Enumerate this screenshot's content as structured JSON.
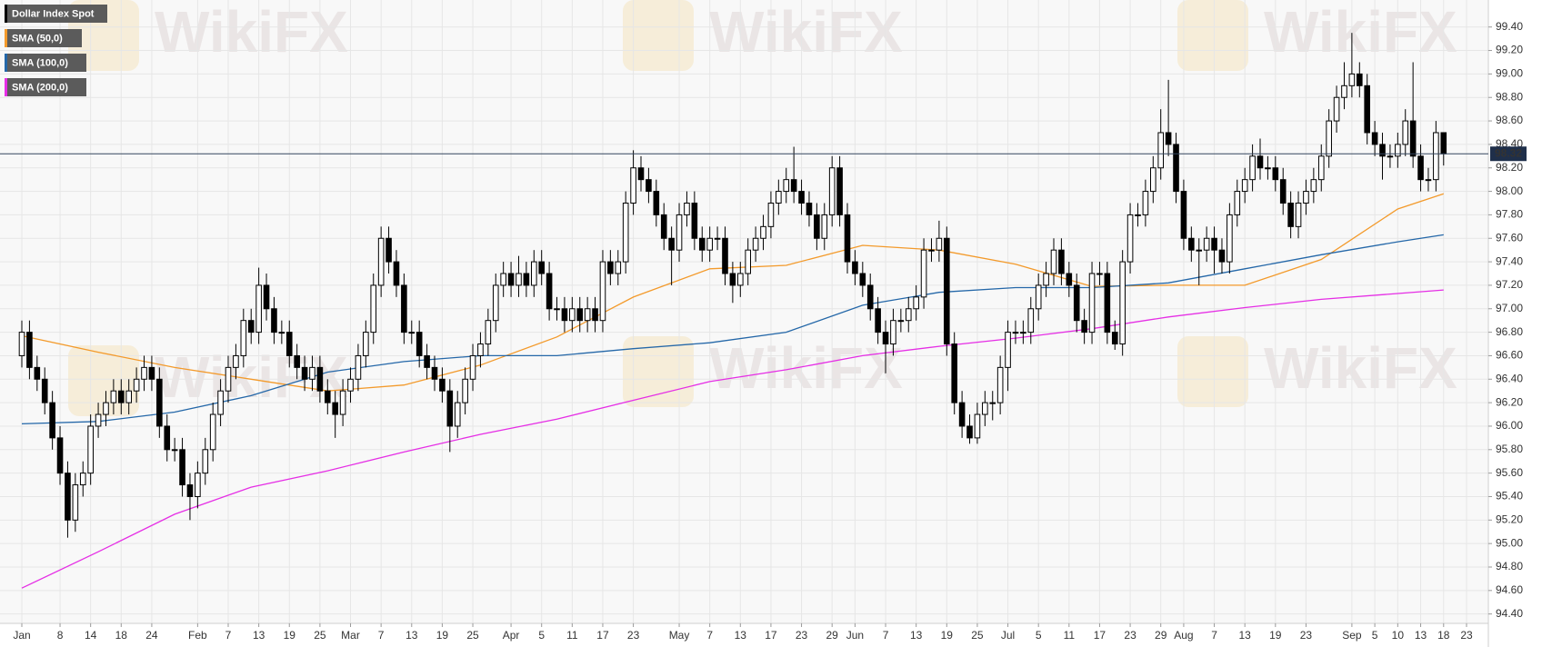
{
  "chart_data": {
    "type": "candlestick",
    "watermark": "WikiFX",
    "last_price": 98.32,
    "grid": true,
    "categories": [
      "Jan",
      null,
      null,
      null,
      null,
      "8",
      null,
      null,
      null,
      "14",
      null,
      null,
      null,
      "18",
      null,
      null,
      null,
      "24",
      null,
      null,
      null,
      null,
      null,
      "Feb",
      null,
      null,
      null,
      "7",
      null,
      null,
      null,
      "13",
      null,
      null,
      null,
      "19",
      null,
      null,
      null,
      "25",
      null,
      null,
      null,
      "Mar",
      null,
      null,
      null,
      "7",
      null,
      null,
      null,
      "13",
      null,
      null,
      null,
      "19",
      null,
      null,
      null,
      "25",
      null,
      null,
      null,
      null,
      "Apr",
      null,
      null,
      null,
      "5",
      null,
      null,
      null,
      "11",
      null,
      null,
      null,
      "17",
      null,
      null,
      null,
      "23",
      null,
      null,
      null,
      null,
      null,
      "May",
      null,
      null,
      null,
      "7",
      null,
      null,
      null,
      "13",
      null,
      null,
      null,
      "17",
      null,
      null,
      null,
      "23",
      null,
      null,
      null,
      "29",
      null,
      null,
      "Jun",
      null,
      null,
      null,
      "7",
      null,
      null,
      null,
      "13",
      null,
      null,
      null,
      "19",
      null,
      null,
      null,
      "25",
      null,
      null,
      null,
      "Jul",
      null,
      null,
      null,
      "5",
      null,
      null,
      null,
      "11",
      null,
      null,
      null,
      "17",
      null,
      null,
      null,
      "23",
      null,
      null,
      null,
      "29",
      null,
      null,
      "Aug",
      null,
      null,
      null,
      "7",
      null,
      null,
      null,
      "13",
      null,
      null,
      null,
      "19",
      null,
      null,
      null,
      "23",
      null,
      null,
      null,
      null,
      null,
      "Sep",
      null,
      null,
      "5",
      null,
      null,
      "10",
      null,
      null,
      "13",
      null,
      null,
      "18",
      null,
      null,
      "23"
    ],
    "ylim": [
      94.32,
      99.63
    ],
    "yticks": [
      {
        "value": 94.4,
        "label": "94.40"
      },
      {
        "value": 94.6,
        "label": "94.60"
      },
      {
        "value": 94.8,
        "label": "94.80"
      },
      {
        "value": 95.0,
        "label": "95.00"
      },
      {
        "value": 95.2,
        "label": "95.20"
      },
      {
        "value": 95.4,
        "label": "95.40"
      },
      {
        "value": 95.6,
        "label": "95.60"
      },
      {
        "value": 95.8,
        "label": "95.80"
      },
      {
        "value": 96.0,
        "label": "96.00"
      },
      {
        "value": 96.2,
        "label": "96.20"
      },
      {
        "value": 96.4,
        "label": "96.40"
      },
      {
        "value": 96.6,
        "label": "96.60"
      },
      {
        "value": 96.8,
        "label": "96.80"
      },
      {
        "value": 97.0,
        "label": "97.00"
      },
      {
        "value": 97.2,
        "label": "97.20"
      },
      {
        "value": 97.4,
        "label": "97.40"
      },
      {
        "value": 97.6,
        "label": "97.60"
      },
      {
        "value": 97.8,
        "label": "97.80"
      },
      {
        "value": 98.0,
        "label": "98.00"
      },
      {
        "value": 98.2,
        "label": "98.20"
      },
      {
        "value": 98.4,
        "label": "98.40"
      },
      {
        "value": 98.6,
        "label": "98.60"
      },
      {
        "value": 98.8,
        "label": "98.80"
      },
      {
        "value": 99.0,
        "label": "99.00"
      },
      {
        "value": 99.2,
        "label": "99.20"
      },
      {
        "value": 99.4,
        "label": "99.40"
      }
    ],
    "series": [
      {
        "name": "Dollar Index Spot",
        "color": "#000000",
        "open": [
          96.6,
          96.8,
          96.5,
          96.4,
          96.2,
          95.9,
          95.6,
          95.2,
          95.5,
          95.6,
          96.0,
          96.1,
          96.2,
          96.3,
          96.2,
          96.3,
          96.4,
          96.5,
          96.4,
          96.0,
          95.8,
          95.8,
          95.5,
          95.4,
          95.6,
          95.8,
          96.1,
          96.3,
          96.5,
          96.6,
          96.9,
          96.8,
          97.2,
          97.0,
          96.8,
          96.8,
          96.6,
          96.5,
          96.4,
          96.5,
          96.3,
          96.2,
          96.1,
          96.3,
          96.4,
          96.6,
          96.8,
          97.2,
          97.6,
          97.4,
          97.2,
          96.8,
          96.8,
          96.6,
          96.5,
          96.4,
          96.3,
          96.0,
          96.2,
          96.4,
          96.6,
          96.7,
          96.9,
          97.2,
          97.3,
          97.2,
          97.3,
          97.2,
          97.4,
          97.3,
          97.0,
          97.0,
          96.9,
          97.0,
          96.9,
          97.0,
          96.9,
          97.4,
          97.3,
          97.4,
          97.9,
          98.2,
          98.1,
          98.0,
          97.8,
          97.6,
          97.5,
          97.8,
          97.9,
          97.6,
          97.5,
          97.6,
          97.6,
          97.3,
          97.2,
          97.3,
          97.5,
          97.6,
          97.7,
          97.9,
          98.0,
          98.1,
          98.0,
          97.9,
          97.8,
          97.6,
          97.8,
          98.2,
          97.8,
          97.4,
          97.3,
          97.2,
          97.0,
          96.8,
          96.7,
          96.9,
          96.9,
          97.0,
          97.1,
          97.5,
          97.5,
          97.6,
          96.7,
          96.2,
          96.0,
          95.9,
          96.1,
          96.2,
          96.2,
          96.5,
          96.8,
          96.8,
          96.8,
          97.0,
          97.2,
          97.3,
          97.5,
          97.3,
          97.2,
          96.9,
          96.8,
          97.3,
          97.3,
          96.8,
          96.7,
          97.4,
          97.8,
          97.8,
          98.0,
          98.2,
          98.5,
          98.4,
          98.0,
          97.6,
          97.5,
          97.5,
          97.6,
          97.5,
          97.4,
          97.8,
          98.0,
          98.1,
          98.3,
          98.2,
          98.2,
          98.1,
          97.9,
          97.7,
          97.9,
          98.0,
          98.1,
          98.3,
          98.6,
          98.8,
          98.9,
          99.0,
          98.9,
          98.5,
          98.4,
          98.3,
          98.3,
          98.4,
          98.6,
          98.3,
          98.1,
          98.1,
          98.5,
          null,
          null,
          null
        ],
        "high": [
          96.9,
          96.9,
          96.6,
          96.5,
          96.3,
          96.0,
          95.7,
          95.6,
          95.7,
          96.1,
          96.2,
          96.3,
          96.4,
          96.4,
          96.4,
          96.5,
          96.6,
          96.6,
          96.5,
          96.1,
          95.9,
          95.9,
          95.6,
          95.7,
          95.9,
          96.2,
          96.4,
          96.6,
          96.7,
          97.0,
          97.0,
          97.35,
          97.3,
          97.1,
          96.9,
          96.9,
          96.7,
          96.6,
          96.6,
          96.6,
          96.4,
          96.3,
          96.4,
          96.5,
          96.7,
          96.9,
          97.3,
          97.7,
          97.7,
          97.5,
          97.3,
          96.9,
          96.9,
          96.7,
          96.6,
          96.5,
          96.4,
          96.3,
          96.5,
          96.7,
          96.8,
          97.0,
          97.3,
          97.4,
          97.4,
          97.45,
          97.4,
          97.5,
          97.5,
          97.4,
          97.1,
          97.1,
          97.1,
          97.1,
          97.1,
          97.1,
          97.5,
          97.5,
          97.5,
          98.0,
          98.35,
          98.3,
          98.2,
          98.1,
          97.9,
          97.7,
          97.9,
          98.0,
          98.0,
          97.7,
          97.7,
          97.7,
          97.7,
          97.4,
          97.4,
          97.6,
          97.7,
          97.8,
          98.0,
          98.1,
          98.2,
          98.38,
          98.1,
          98.0,
          97.9,
          97.9,
          98.3,
          98.3,
          97.9,
          97.5,
          97.4,
          97.3,
          97.1,
          96.9,
          97.0,
          97.0,
          97.1,
          97.2,
          97.6,
          97.6,
          97.75,
          97.7,
          96.8,
          96.3,
          96.1,
          96.2,
          96.3,
          96.3,
          96.6,
          96.9,
          96.9,
          96.9,
          97.1,
          97.3,
          97.4,
          97.6,
          97.6,
          97.4,
          97.3,
          97.0,
          97.4,
          97.4,
          97.4,
          96.9,
          97.5,
          97.9,
          97.9,
          98.1,
          98.3,
          98.7,
          98.95,
          98.5,
          98.1,
          97.7,
          97.6,
          97.7,
          97.7,
          97.6,
          97.9,
          98.1,
          98.2,
          98.4,
          98.45,
          98.3,
          98.3,
          98.2,
          98.0,
          98.0,
          98.1,
          98.2,
          98.4,
          98.7,
          98.9,
          99.1,
          99.35,
          99.1,
          99.0,
          98.6,
          98.5,
          98.4,
          98.5,
          98.7,
          99.1,
          98.4,
          98.2,
          98.6,
          98.5,
          null,
          null,
          null
        ],
        "low": [
          96.5,
          96.4,
          96.3,
          96.1,
          95.8,
          95.5,
          95.05,
          95.1,
          95.4,
          95.5,
          95.9,
          96.0,
          96.1,
          96.1,
          96.1,
          96.2,
          96.3,
          96.3,
          95.9,
          95.7,
          95.7,
          95.4,
          95.2,
          95.3,
          95.5,
          95.7,
          96.0,
          96.2,
          96.4,
          96.5,
          96.7,
          96.7,
          96.9,
          96.7,
          96.7,
          96.5,
          96.4,
          96.3,
          96.3,
          96.2,
          96.1,
          95.9,
          96.0,
          96.2,
          96.3,
          96.5,
          96.7,
          97.1,
          97.3,
          97.1,
          96.7,
          96.7,
          96.5,
          96.4,
          96.3,
          96.2,
          95.78,
          95.9,
          96.1,
          96.3,
          96.5,
          96.6,
          96.8,
          97.1,
          97.1,
          97.1,
          97.1,
          97.1,
          97.2,
          96.9,
          96.9,
          96.8,
          96.8,
          96.8,
          96.8,
          96.8,
          96.8,
          97.2,
          97.2,
          97.3,
          97.8,
          98.0,
          97.9,
          97.7,
          97.5,
          97.2,
          97.4,
          97.7,
          97.5,
          97.4,
          97.4,
          97.5,
          97.2,
          97.05,
          97.1,
          97.2,
          97.4,
          97.5,
          97.6,
          97.8,
          97.9,
          97.9,
          97.8,
          97.7,
          97.5,
          97.5,
          97.7,
          97.7,
          97.3,
          97.2,
          97.1,
          96.9,
          96.7,
          96.45,
          96.6,
          96.8,
          96.8,
          96.9,
          97.0,
          97.4,
          97.4,
          96.6,
          96.1,
          95.9,
          95.85,
          95.85,
          96.0,
          96.05,
          96.1,
          96.3,
          96.7,
          96.7,
          96.7,
          96.9,
          97.1,
          97.2,
          97.2,
          97.1,
          96.8,
          96.7,
          96.7,
          97.2,
          96.7,
          96.65,
          96.6,
          97.3,
          97.7,
          97.7,
          97.9,
          98.1,
          98.3,
          97.9,
          97.5,
          97.4,
          97.2,
          97.4,
          97.3,
          97.3,
          97.3,
          97.7,
          97.9,
          98.0,
          98.1,
          98.1,
          98.0,
          97.8,
          97.6,
          97.6,
          97.8,
          97.9,
          98.0,
          98.2,
          98.5,
          98.7,
          98.8,
          98.8,
          98.4,
          98.3,
          98.1,
          98.2,
          98.2,
          98.3,
          98.2,
          98.0,
          98.0,
          98.0,
          98.22,
          null,
          null,
          null
        ],
        "close": [
          96.8,
          96.5,
          96.4,
          96.2,
          95.9,
          95.6,
          95.2,
          95.5,
          95.6,
          96.0,
          96.1,
          96.2,
          96.3,
          96.2,
          96.3,
          96.4,
          96.5,
          96.4,
          96.0,
          95.8,
          95.8,
          95.5,
          95.4,
          95.6,
          95.8,
          96.1,
          96.3,
          96.5,
          96.6,
          96.9,
          96.8,
          97.2,
          97.0,
          96.8,
          96.8,
          96.6,
          96.5,
          96.4,
          96.5,
          96.3,
          96.2,
          96.1,
          96.3,
          96.4,
          96.6,
          96.8,
          97.2,
          97.6,
          97.4,
          97.2,
          96.8,
          96.8,
          96.6,
          96.5,
          96.4,
          96.3,
          96.0,
          96.2,
          96.4,
          96.6,
          96.7,
          96.9,
          97.2,
          97.3,
          97.2,
          97.3,
          97.2,
          97.4,
          97.3,
          97.0,
          97.0,
          96.9,
          97.0,
          96.9,
          97.0,
          96.9,
          97.4,
          97.3,
          97.4,
          97.9,
          98.2,
          98.1,
          98.0,
          97.8,
          97.6,
          97.5,
          97.8,
          97.9,
          97.6,
          97.5,
          97.6,
          97.6,
          97.3,
          97.2,
          97.3,
          97.5,
          97.6,
          97.7,
          97.9,
          98.0,
          98.1,
          98.0,
          97.9,
          97.8,
          97.6,
          97.8,
          98.2,
          97.8,
          97.4,
          97.3,
          97.2,
          97.0,
          96.8,
          96.7,
          96.9,
          96.9,
          97.0,
          97.1,
          97.5,
          97.5,
          97.6,
          96.7,
          96.2,
          96.0,
          95.9,
          96.1,
          96.2,
          96.2,
          96.5,
          96.8,
          96.8,
          96.8,
          97.0,
          97.2,
          97.3,
          97.5,
          97.3,
          97.2,
          96.9,
          96.8,
          97.3,
          97.3,
          96.8,
          96.7,
          97.4,
          97.8,
          97.8,
          98.0,
          98.2,
          98.5,
          98.4,
          98.0,
          97.6,
          97.5,
          97.5,
          97.6,
          97.5,
          97.4,
          97.8,
          98.0,
          98.1,
          98.3,
          98.2,
          98.2,
          98.1,
          97.9,
          97.7,
          97.9,
          98.0,
          98.1,
          98.3,
          98.6,
          98.8,
          98.9,
          99.0,
          98.9,
          98.5,
          98.4,
          98.3,
          98.3,
          98.4,
          98.6,
          98.3,
          98.1,
          98.1,
          98.5,
          98.32,
          null,
          null,
          null
        ]
      },
      {
        "name": "SMA (50,0)",
        "type": "line",
        "color": "#f39a2b",
        "x": [
          0,
          10,
          20,
          30,
          40,
          50,
          60,
          70,
          80,
          90,
          100,
          110,
          120,
          130,
          140,
          150,
          160,
          170,
          180,
          186
        ],
        "values": [
          96.77,
          96.63,
          96.5,
          96.4,
          96.3,
          96.35,
          96.52,
          96.76,
          97.1,
          97.34,
          97.37,
          97.54,
          97.5,
          97.38,
          97.19,
          97.2,
          97.2,
          97.42,
          97.85,
          97.98
        ]
      },
      {
        "name": "SMA (100,0)",
        "type": "line",
        "color": "#2467a8",
        "x": [
          0,
          10,
          20,
          30,
          40,
          50,
          60,
          70,
          80,
          90,
          100,
          110,
          120,
          130,
          140,
          150,
          160,
          170,
          180,
          186
        ],
        "values": [
          96.02,
          96.04,
          96.12,
          96.26,
          96.46,
          96.55,
          96.6,
          96.6,
          96.66,
          96.71,
          96.8,
          97.03,
          97.14,
          97.18,
          97.18,
          97.22,
          97.34,
          97.46,
          97.57,
          97.63
        ]
      },
      {
        "name": "SMA (200,0)",
        "type": "line",
        "color": "#e52ee5",
        "x": [
          0,
          10,
          20,
          30,
          40,
          50,
          60,
          70,
          80,
          90,
          100,
          110,
          120,
          130,
          140,
          150,
          160,
          170,
          180,
          186
        ],
        "values": [
          94.62,
          94.93,
          95.25,
          95.48,
          95.62,
          95.78,
          95.93,
          96.06,
          96.22,
          96.38,
          96.48,
          96.6,
          96.68,
          96.75,
          96.83,
          96.93,
          97.01,
          97.08,
          97.13,
          97.16
        ]
      }
    ]
  }
}
